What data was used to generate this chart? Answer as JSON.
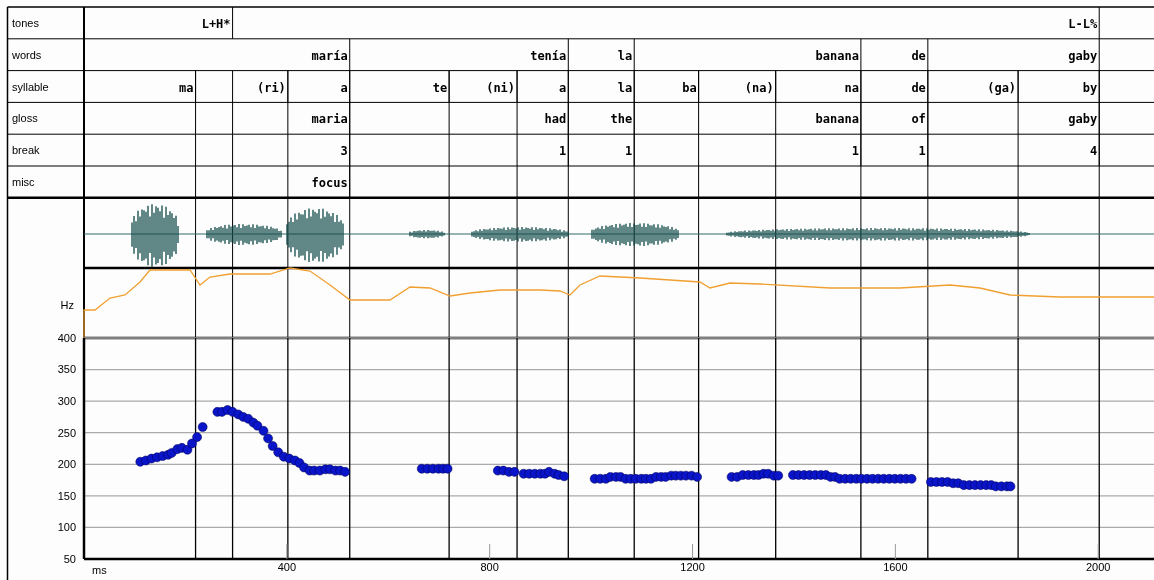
{
  "chart_data": {
    "type": "scatter",
    "xlabel": "ms",
    "ylabel": "Hz",
    "xlim": [
      0,
      2110
    ],
    "xticks": [
      400,
      800,
      1200,
      1600,
      2000
    ],
    "ylim": [
      50,
      400
    ],
    "yticks": [
      50,
      100,
      150,
      200,
      250,
      300,
      350,
      400
    ],
    "grid": "y",
    "marker": "circle",
    "series": [
      {
        "color": "#0a14c8",
        "x": [
          111,
          122,
          133,
          144,
          155,
          166,
          173,
          184,
          193,
          204,
          213,
          223,
          234,
          263,
          272,
          283,
          293,
          304,
          314,
          324,
          334,
          342,
          354,
          363,
          372,
          383,
          394,
          405,
          416,
          425,
          434,
          445,
          454,
          465,
          476,
          485,
          496,
          505,
          515,
          666,
          677,
          688,
          699,
          708,
          717,
          816,
          827,
          838,
          849,
          867,
          878,
          889,
          900,
          909,
          917,
          928,
          936,
          947,
          1007,
          1018,
          1029,
          1038,
          1049,
          1058,
          1068,
          1078,
          1088,
          1099,
          1108,
          1118,
          1128,
          1138,
          1147,
          1158,
          1167,
          1177,
          1187,
          1198,
          1209,
          1277,
          1288,
          1299,
          1310,
          1321,
          1330,
          1340,
          1349,
          1360,
          1369,
          1398,
          1409,
          1420,
          1431,
          1442,
          1453,
          1463,
          1472,
          1481,
          1490,
          1501,
          1512,
          1523,
          1533,
          1544,
          1555,
          1566,
          1577,
          1588,
          1599,
          1610,
          1621,
          1632,
          1670,
          1681,
          1692,
          1703,
          1714,
          1724,
          1735,
          1746,
          1757,
          1768,
          1779,
          1789,
          1798,
          1809,
          1820,
          1827
        ],
        "values": [
          204,
          206,
          209,
          211,
          213,
          215,
          218,
          224,
          226,
          223,
          233,
          243,
          259,
          283,
          283,
          286,
          283,
          279,
          275,
          272,
          266,
          261,
          253,
          241,
          229,
          219,
          212,
          209,
          206,
          202,
          195,
          190,
          190,
          190,
          192,
          192,
          190,
          190,
          188,
          193,
          193,
          193,
          193,
          193,
          193,
          190,
          190,
          188,
          188,
          185,
          185,
          185,
          185,
          185,
          188,
          185,
          183,
          181,
          177,
          177,
          177,
          180,
          180,
          180,
          177,
          177,
          177,
          177,
          177,
          177,
          180,
          180,
          180,
          182,
          182,
          182,
          182,
          182,
          180,
          180,
          180,
          183,
          183,
          183,
          183,
          185,
          185,
          182,
          182,
          183,
          183,
          183,
          183,
          183,
          183,
          183,
          180,
          180,
          177,
          177,
          177,
          177,
          177,
          177,
          177,
          177,
          177,
          177,
          177,
          177,
          177,
          177,
          172,
          172,
          172,
          172,
          170,
          170,
          167,
          167,
          167,
          167,
          167,
          167,
          165,
          165,
          165,
          165
        ]
      }
    ],
    "ref_lines": [
      {
        "axis": "x",
        "value": 220,
        "color": "#000000"
      },
      {
        "axis": "x",
        "value": 293,
        "color": "#000000"
      },
      {
        "axis": "x",
        "value": 402,
        "color": "#000000"
      },
      {
        "axis": "x",
        "value": 524,
        "color": "#000000"
      },
      {
        "axis": "x",
        "value": 720,
        "color": "#000000"
      },
      {
        "axis": "x",
        "value": 854,
        "color": "#000000"
      },
      {
        "axis": "x",
        "value": 955,
        "color": "#000000"
      },
      {
        "axis": "x",
        "value": 1085,
        "color": "#000000"
      },
      {
        "axis": "x",
        "value": 1212,
        "color": "#000000"
      },
      {
        "axis": "x",
        "value": 1364,
        "color": "#000000"
      },
      {
        "axis": "x",
        "value": 1532,
        "color": "#000000"
      },
      {
        "axis": "x",
        "value": 1664,
        "color": "#000000"
      },
      {
        "axis": "x",
        "value": 1842,
        "color": "#000000"
      },
      {
        "axis": "x",
        "value": 2002,
        "color": "#000000"
      }
    ],
    "annotations": [
      "tones",
      "L+H*",
      "L-L%",
      "words",
      "maría",
      "tenía",
      "la",
      "banana",
      "de",
      "gaby",
      "syllable",
      "ma",
      "(ri)",
      "a",
      "te",
      "(ni)",
      "a",
      "la",
      "ba",
      "(na)",
      "na",
      "de",
      "(ga)",
      "by",
      "gloss",
      "maria",
      "had",
      "the",
      "banana",
      "of",
      "gaby",
      "break",
      "3",
      "1",
      "1",
      "1",
      "1",
      "4",
      "misc",
      "focus"
    ]
  }
}
